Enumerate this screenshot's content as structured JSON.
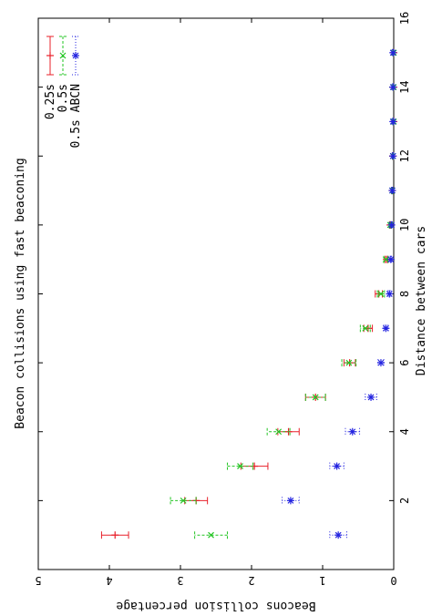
{
  "chart_data": {
    "type": "scatter",
    "title": "Beacon collisions using fast beaconing",
    "xlabel": "Distance between cars",
    "ylabel": "Beacons collision percentage",
    "xlim": [
      0,
      16
    ],
    "ylim": [
      0,
      5
    ],
    "x_ticks": [
      "2",
      "4",
      "6",
      "8",
      "10",
      "12",
      "14",
      "16"
    ],
    "y_ticks": [
      "0",
      "1",
      "2",
      "3",
      "4",
      "5"
    ],
    "orientation": "rotated-90",
    "legend_position": "top-left",
    "error_bars": true,
    "grid": false,
    "series": [
      {
        "name": "0.25s",
        "color": "#e8202a",
        "marker": "plus",
        "points": [
          {
            "x": 1,
            "y": 3.92,
            "lo": 3.73,
            "hi": 4.11
          },
          {
            "x": 2,
            "y": 2.78,
            "lo": 2.62,
            "hi": 2.94
          },
          {
            "x": 3,
            "y": 1.96,
            "lo": 1.77,
            "hi": 2.15
          },
          {
            "x": 4,
            "y": 1.48,
            "lo": 1.33,
            "hi": 1.63
          },
          {
            "x": 5,
            "y": 1.1,
            "lo": 0.96,
            "hi": 1.24
          },
          {
            "x": 6,
            "y": 0.62,
            "lo": 0.54,
            "hi": 0.7
          },
          {
            "x": 7,
            "y": 0.36,
            "lo": 0.3,
            "hi": 0.42
          },
          {
            "x": 8,
            "y": 0.21,
            "lo": 0.16,
            "hi": 0.26
          },
          {
            "x": 9,
            "y": 0.1,
            "lo": 0.08,
            "hi": 0.12
          },
          {
            "x": 10,
            "y": 0.05,
            "lo": 0.04,
            "hi": 0.06
          },
          {
            "x": 11,
            "y": 0.02,
            "lo": 0.01,
            "hi": 0.03
          },
          {
            "x": 12,
            "y": 0.01,
            "lo": 0.0,
            "hi": 0.02
          },
          {
            "x": 13,
            "y": 0.0,
            "lo": 0.0,
            "hi": 0.01
          },
          {
            "x": 14,
            "y": 0.0,
            "lo": 0.0,
            "hi": 0.01
          },
          {
            "x": 15,
            "y": 0.0,
            "lo": 0.0,
            "hi": 0.01
          }
        ]
      },
      {
        "name": "0.5s",
        "color": "#22c422",
        "marker": "x",
        "points": [
          {
            "x": 1,
            "y": 2.57,
            "lo": 2.34,
            "hi": 2.8
          },
          {
            "x": 2,
            "y": 2.96,
            "lo": 2.78,
            "hi": 3.14
          },
          {
            "x": 3,
            "y": 2.16,
            "lo": 1.98,
            "hi": 2.34
          },
          {
            "x": 4,
            "y": 1.62,
            "lo": 1.46,
            "hi": 1.78
          },
          {
            "x": 5,
            "y": 1.1,
            "lo": 0.96,
            "hi": 1.24
          },
          {
            "x": 6,
            "y": 0.63,
            "lo": 0.53,
            "hi": 0.73
          },
          {
            "x": 7,
            "y": 0.4,
            "lo": 0.33,
            "hi": 0.47
          },
          {
            "x": 8,
            "y": 0.18,
            "lo": 0.13,
            "hi": 0.23
          },
          {
            "x": 9,
            "y": 0.11,
            "lo": 0.08,
            "hi": 0.14
          },
          {
            "x": 10,
            "y": 0.05,
            "lo": 0.04,
            "hi": 0.06
          },
          {
            "x": 11,
            "y": 0.02,
            "lo": 0.01,
            "hi": 0.03
          },
          {
            "x": 12,
            "y": 0.01,
            "lo": 0.0,
            "hi": 0.02
          },
          {
            "x": 13,
            "y": 0.0,
            "lo": 0.0,
            "hi": 0.01
          },
          {
            "x": 14,
            "y": 0.0,
            "lo": 0.0,
            "hi": 0.01
          },
          {
            "x": 15,
            "y": 0.0,
            "lo": 0.0,
            "hi": 0.01
          }
        ]
      },
      {
        "name": "0.5s ABCN",
        "color": "#2323e0",
        "marker": "star",
        "points": [
          {
            "x": 1,
            "y": 0.78,
            "lo": 0.66,
            "hi": 0.9
          },
          {
            "x": 2,
            "y": 1.45,
            "lo": 1.33,
            "hi": 1.57
          },
          {
            "x": 3,
            "y": 0.8,
            "lo": 0.7,
            "hi": 0.9
          },
          {
            "x": 4,
            "y": 0.58,
            "lo": 0.48,
            "hi": 0.68
          },
          {
            "x": 5,
            "y": 0.32,
            "lo": 0.24,
            "hi": 0.4
          },
          {
            "x": 6,
            "y": 0.18,
            "lo": 0.14,
            "hi": 0.22
          },
          {
            "x": 7,
            "y": 0.11,
            "lo": 0.08,
            "hi": 0.14
          },
          {
            "x": 8,
            "y": 0.06,
            "lo": 0.04,
            "hi": 0.08
          },
          {
            "x": 9,
            "y": 0.04,
            "lo": 0.03,
            "hi": 0.05
          },
          {
            "x": 10,
            "y": 0.03,
            "lo": 0.02,
            "hi": 0.04
          },
          {
            "x": 11,
            "y": 0.02,
            "lo": 0.01,
            "hi": 0.03
          },
          {
            "x": 12,
            "y": 0.01,
            "lo": 0.0,
            "hi": 0.02
          },
          {
            "x": 13,
            "y": 0.01,
            "lo": 0.0,
            "hi": 0.02
          },
          {
            "x": 14,
            "y": 0.01,
            "lo": 0.0,
            "hi": 0.02
          },
          {
            "x": 15,
            "y": 0.01,
            "lo": 0.0,
            "hi": 0.02
          }
        ]
      }
    ]
  }
}
